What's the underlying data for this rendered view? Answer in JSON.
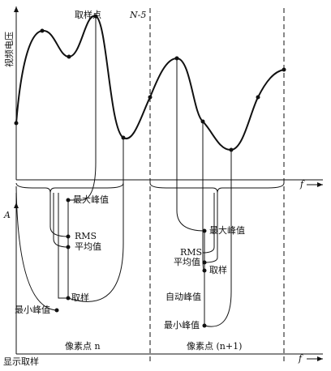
{
  "top": {
    "sample_point": "取样点",
    "n5": "N-5",
    "y_label": "视频电压",
    "x_label": "f"
  },
  "bottom": {
    "y_label": "A",
    "x_label": "f",
    "caption": "显示取样",
    "left": {
      "max_peak": "最大峰值",
      "rms": "RMS",
      "average": "平均值",
      "sample": "取样",
      "min_peak": "最小峰值",
      "pixel": "像素点 n"
    },
    "right": {
      "max_peak": "最大峰值",
      "rms": "RMS",
      "average": "平均值",
      "sample": "取样",
      "auto_peak": "自动峰值",
      "min_peak": "最小峰值",
      "pixel": "像素点 (n+1)"
    }
  }
}
